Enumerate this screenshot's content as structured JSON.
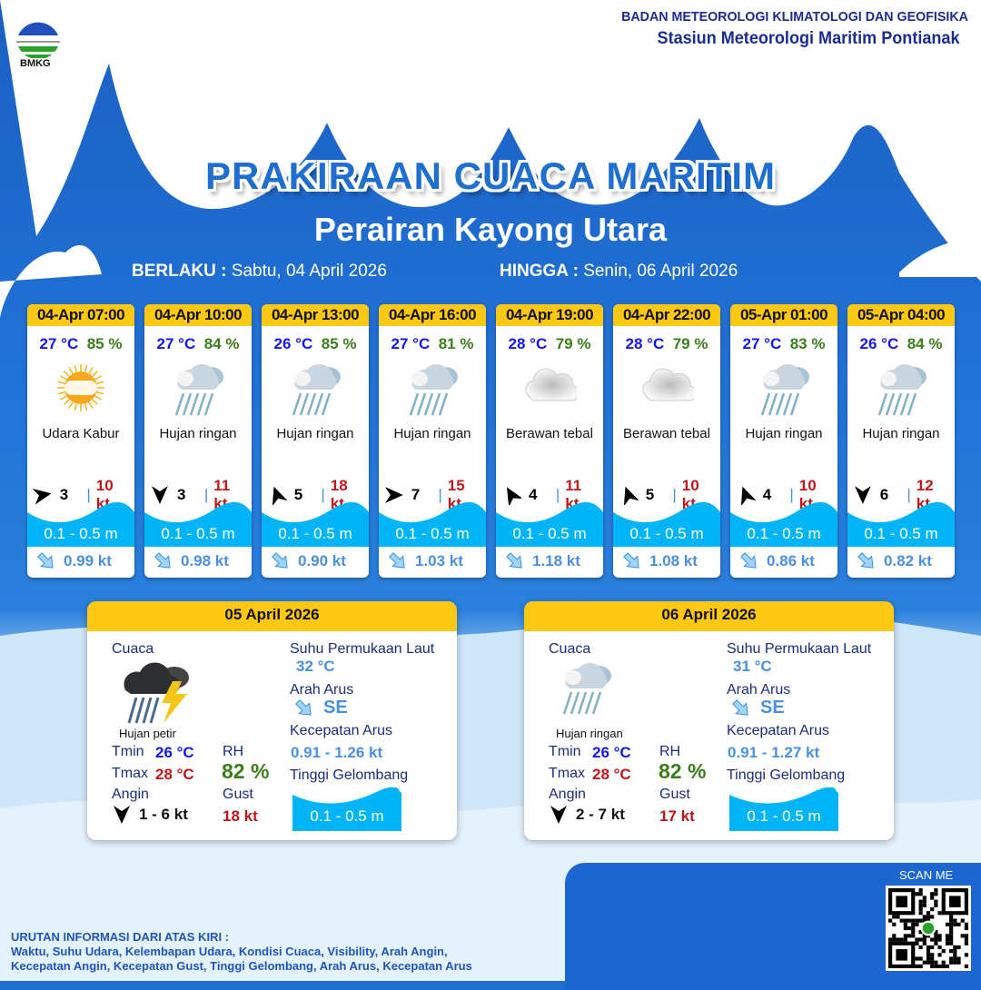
{
  "header": {
    "logo_text": "BMKG",
    "org": "BADAN METEOROLOGI KLIMATOLOGI DAN GEOFISIKA",
    "station": "Stasiun Meteorologi Maritim Pontianak"
  },
  "title": "PRAKIRAAN CUACA MARITIM",
  "area": "Perairan Kayong Utara",
  "validity": {
    "from_label": "BERLAKU :",
    "from": "Sabtu, 04 April 2026",
    "to_label": "HINGGA :",
    "to": "Senin, 06 April 2026"
  },
  "colors": {
    "header_yellow": "#fcc813",
    "temp": "#1515f0",
    "rh": "#3a7d1a",
    "gust": "#c0161a",
    "wave": "#00b4f6",
    "current": "#4a90e2"
  },
  "forecasts": [
    {
      "time": "04-Apr 07:00",
      "temp": "27 °C",
      "rh": "85 %",
      "icon": "haze-sun-icon",
      "cond": "Udara Kabur",
      "wind_dir_deg": 80,
      "wind": "3",
      "gust": "10 kt",
      "wave": "0.1 - 0.5 m",
      "current_dir_deg": 135,
      "current": "0.99 kt"
    },
    {
      "time": "04-Apr 10:00",
      "temp": "27 °C",
      "rh": "84 %",
      "icon": "light-rain-icon",
      "cond": "Hujan ringan",
      "wind_dir_deg": 180,
      "wind": "3",
      "gust": "11 kt",
      "wave": "0.1 - 0.5 m",
      "current_dir_deg": 135,
      "current": "0.98 kt"
    },
    {
      "time": "04-Apr 13:00",
      "temp": "26 °C",
      "rh": "85 %",
      "icon": "light-rain-icon",
      "cond": "Hujan ringan",
      "wind_dir_deg": -20,
      "wind": "5",
      "gust": "18 kt",
      "wave": "0.1 - 0.5 m",
      "current_dir_deg": 135,
      "current": "0.90 kt"
    },
    {
      "time": "04-Apr 16:00",
      "temp": "27 °C",
      "rh": "81 %",
      "icon": "light-rain-icon",
      "cond": "Hujan ringan",
      "wind_dir_deg": 90,
      "wind": "7",
      "gust": "15 kt",
      "wave": "0.1 - 0.5 m",
      "current_dir_deg": 135,
      "current": "1.03 kt"
    },
    {
      "time": "04-Apr 19:00",
      "temp": "28 °C",
      "rh": "79 %",
      "icon": "overcast-cloud-icon",
      "cond": "Berawan tebal",
      "wind_dir_deg": -30,
      "wind": "4",
      "gust": "11 kt",
      "wave": "0.1 - 0.5 m",
      "current_dir_deg": 135,
      "current": "1.18 kt"
    },
    {
      "time": "04-Apr 22:00",
      "temp": "28 °C",
      "rh": "79 %",
      "icon": "overcast-cloud-icon",
      "cond": "Berawan tebal",
      "wind_dir_deg": -20,
      "wind": "5",
      "gust": "10 kt",
      "wave": "0.1 - 0.5 m",
      "current_dir_deg": 135,
      "current": "1.08 kt"
    },
    {
      "time": "05-Apr 01:00",
      "temp": "27 °C",
      "rh": "83 %",
      "icon": "light-rain-icon",
      "cond": "Hujan ringan",
      "wind_dir_deg": -20,
      "wind": "4",
      "gust": "10 kt",
      "wave": "0.1 - 0.5 m",
      "current_dir_deg": 135,
      "current": "0.86 kt"
    },
    {
      "time": "05-Apr 04:00",
      "temp": "26 °C",
      "rh": "84 %",
      "icon": "light-rain-icon",
      "cond": "Hujan ringan",
      "wind_dir_deg": 180,
      "wind": "6",
      "gust": "12 kt",
      "wave": "0.1 - 0.5 m",
      "current_dir_deg": 135,
      "current": "0.82 kt"
    }
  ],
  "labels": {
    "weather": "Cuaca",
    "sst": "Suhu Permukaan Laut",
    "cur_dir": "Arah Arus",
    "cur_speed": "Kecepatan Arus",
    "wave": "Tinggi Gelombang",
    "tmin": "Tmin",
    "tmax": "Tmax",
    "rh": "RH",
    "wind": "Angin",
    "gust": "Gust"
  },
  "daily": [
    {
      "date": "05 April 2026",
      "icon": "thunderstorm-icon",
      "cond": "Hujan petir",
      "tmin": "26 °C",
      "tmax": "28 °C",
      "rh": "82 %",
      "wind_dir_deg": 180,
      "wind": "1  - 6 kt",
      "gust": "18 kt",
      "sst": "32 °C",
      "cur_dir": "SE",
      "cur_speed": "0.91  - 1.26 kt",
      "wave": "0.1 - 0.5 m"
    },
    {
      "date": "06 April 2026",
      "icon": "light-rain-icon",
      "cond": "Hujan ringan",
      "tmin": "26 °C",
      "tmax": "28 °C",
      "rh": "82 %",
      "wind_dir_deg": 180,
      "wind": "2  - 7 kt",
      "gust": "17 kt",
      "sst": "31 °C",
      "cur_dir": "SE",
      "cur_speed": "0.91  - 1.27 kt",
      "wave": "0.1 - 0.5 m"
    }
  ],
  "footer": {
    "heading": "URUTAN INFORMASI DARI ATAS KIRI :",
    "line1": "Waktu, Suhu Udara, Kelembapan Udara, Kondisi Cuaca, Visibility, Arah Angin,",
    "line2": "Kecepatan Angin, Kecepatan Gust, Tinggi Gelombang, Arah Arus, Kecepatan Arus"
  },
  "scan": "SCAN ME"
}
